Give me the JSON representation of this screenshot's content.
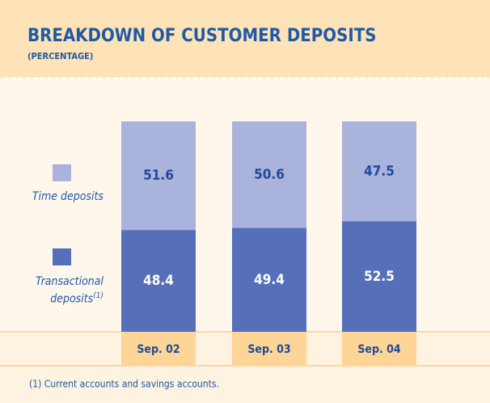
{
  "chart_data": {
    "type": "bar",
    "stacked": true,
    "title": "BREAKDOWN OF CUSTOMER DEPOSITS",
    "subtitle": "(PERCENTAGE)",
    "categories": [
      "Sep. 02",
      "Sep. 03",
      "Sep. 04"
    ],
    "series": [
      {
        "name": "Transactional deposits",
        "color": "#5570b9",
        "values": [
          48.4,
          49.4,
          52.5
        ]
      },
      {
        "name": "Time deposits",
        "color": "#aab3dc",
        "values": [
          51.6,
          50.6,
          47.5
        ]
      }
    ],
    "ylim": [
      0,
      100
    ],
    "legend_note": "(1)",
    "footnote": "(1)  Current accounts and savings accounts."
  }
}
